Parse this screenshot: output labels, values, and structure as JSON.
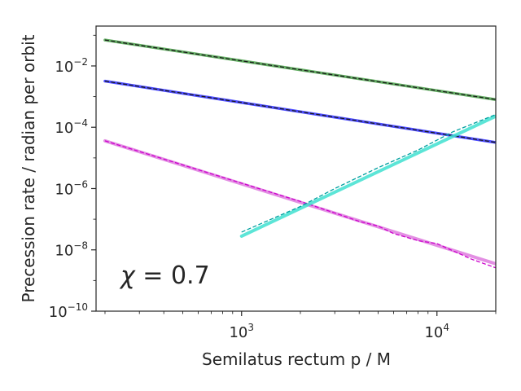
{
  "chart_data": {
    "type": "line",
    "title": "",
    "xlabel": "Semilatus rectum p / M",
    "ylabel": "Precession rate / radian per orbit",
    "xscale": "log",
    "yscale": "log",
    "xlim": [
      180,
      20000
    ],
    "ylim": [
      1e-10,
      0.2
    ],
    "grid": false,
    "legend": "none",
    "x_ticks": [
      {
        "value": 1000,
        "base": "10",
        "exp": "3"
      },
      {
        "value": 10000,
        "base": "10",
        "exp": "4"
      }
    ],
    "y_ticks": [
      {
        "value": 0.01,
        "base": "10",
        "exp": "−2"
      },
      {
        "value": 0.0001,
        "base": "10",
        "exp": "−4"
      },
      {
        "value": 1e-06,
        "base": "10",
        "exp": "−6"
      },
      {
        "value": 1e-08,
        "base": "10",
        "exp": "−8"
      },
      {
        "value": 1e-10,
        "base": "10",
        "exp": "−10"
      }
    ],
    "annotation": {
      "symbol": "χ",
      "text": " = 0.7"
    },
    "series": [
      {
        "color": "#228b22",
        "style": "solid",
        "width": 3.5,
        "opacity": 0.7,
        "x": [
          200,
          20000
        ],
        "y": [
          0.07,
          0.0008
        ]
      },
      {
        "color": "#1a1a1a",
        "style": "dashed",
        "width": 1.3,
        "opacity": 1,
        "x": [
          200,
          20000
        ],
        "y": [
          0.07,
          0.0008
        ]
      },
      {
        "color": "#0000ff",
        "style": "solid",
        "width": 3.5,
        "opacity": 0.7,
        "x": [
          200,
          20000
        ],
        "y": [
          0.0032,
          3.2e-05
        ]
      },
      {
        "color": "#1a1a1a",
        "style": "dashed",
        "width": 1.3,
        "opacity": 1,
        "x": [
          200,
          20000
        ],
        "y": [
          0.0032,
          3.2e-05
        ]
      },
      {
        "color": "#cc33cc",
        "style": "solid",
        "width": 4,
        "opacity": 0.55,
        "x": [
          200,
          20000
        ],
        "y": [
          3.6e-05,
          3.5e-09
        ]
      },
      {
        "color": "#cc00cc",
        "style": "dashed",
        "width": 1.3,
        "opacity": 1,
        "x": [
          200,
          1000,
          2000,
          3000,
          4000,
          5000,
          6000,
          8000,
          10000,
          15000,
          20000
        ],
        "y": [
          3.6e-05,
          1.5e-06,
          3.8e-07,
          1.6e-07,
          8.5e-08,
          6e-08,
          3.4e-08,
          2e-08,
          1.6e-08,
          5e-09,
          2.6e-09
        ]
      },
      {
        "color": "#40e0d0",
        "style": "solid",
        "width": 4,
        "opacity": 0.85,
        "x": [
          1000,
          20000
        ],
        "y": [
          2.8e-08,
          0.00023
        ]
      },
      {
        "color": "#00a0a0",
        "style": "dashed",
        "width": 1.3,
        "opacity": 1,
        "x": [
          1000,
          2000,
          3000,
          5000,
          8000,
          12000,
          20000
        ],
        "y": [
          3.8e-08,
          2.6e-07,
          1e-06,
          4.8e-06,
          1.8e-05,
          7e-05,
          0.00026
        ]
      }
    ]
  }
}
